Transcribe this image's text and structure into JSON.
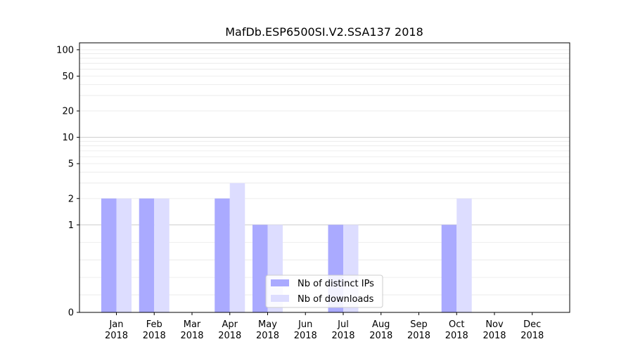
{
  "chart_data": {
    "type": "bar",
    "title": "MafDb.ESP6500SI.V2.SSA137 2018",
    "xlabel": "",
    "ylabel": "",
    "y_scale": "symlog",
    "ylim": [
      0,
      120
    ],
    "y_ticks": [
      0,
      1,
      2,
      5,
      10,
      20,
      50,
      100
    ],
    "y_tick_labels": [
      "0",
      "1",
      "2",
      "5",
      "10",
      "20",
      "50",
      "100"
    ],
    "categories": [
      {
        "month": "Jan",
        "year": "2018"
      },
      {
        "month": "Feb",
        "year": "2018"
      },
      {
        "month": "Mar",
        "year": "2018"
      },
      {
        "month": "Apr",
        "year": "2018"
      },
      {
        "month": "May",
        "year": "2018"
      },
      {
        "month": "Jun",
        "year": "2018"
      },
      {
        "month": "Jul",
        "year": "2018"
      },
      {
        "month": "Aug",
        "year": "2018"
      },
      {
        "month": "Sep",
        "year": "2018"
      },
      {
        "month": "Oct",
        "year": "2018"
      },
      {
        "month": "Nov",
        "year": "2018"
      },
      {
        "month": "Dec",
        "year": "2018"
      }
    ],
    "series": [
      {
        "name": "Nb of distinct IPs",
        "color": "#aaaaff",
        "values": [
          2,
          2,
          0,
          2,
          1,
          0,
          1,
          0,
          0,
          1,
          0,
          0
        ]
      },
      {
        "name": "Nb of downloads",
        "color": "#ddddff",
        "values": [
          2,
          2,
          0,
          3,
          1,
          0,
          1,
          0,
          0,
          2,
          0,
          0
        ]
      }
    ],
    "grid": true,
    "legend_position": "bottom-center"
  }
}
